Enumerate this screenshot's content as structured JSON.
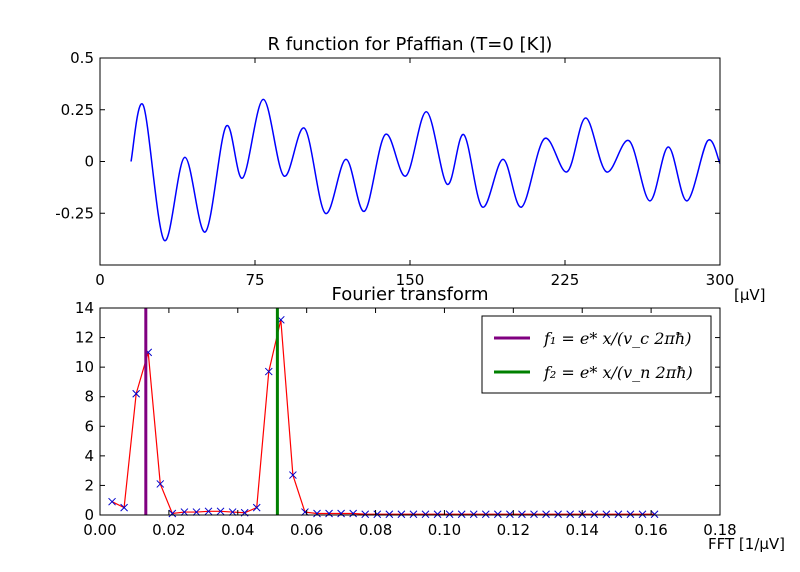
{
  "chart_data": [
    {
      "type": "line",
      "title": "R function for Pfaffian (T=0 [K])",
      "xlabel": "[μV]",
      "ylabel": "",
      "xlim": [
        0,
        300
      ],
      "ylim": [
        -0.5,
        0.5
      ],
      "x_ticks": [
        "0",
        "75",
        "150",
        "225",
        "300"
      ],
      "y_ticks": [
        "0.5",
        "0.25",
        "0",
        "-0.25"
      ],
      "grid": false,
      "series": [
        {
          "color": "#0000ff",
          "x": [
            15,
            21,
            31,
            41,
            51,
            61,
            69,
            79,
            89,
            99,
            109,
            119,
            128,
            138,
            148,
            158,
            168,
            176,
            185,
            195,
            204,
            215,
            226,
            235,
            245,
            256,
            266,
            275,
            284,
            294,
            300
          ],
          "y": [
            0.0,
            0.27,
            -0.38,
            0.02,
            -0.34,
            0.17,
            -0.08,
            0.3,
            -0.07,
            0.16,
            -0.25,
            0.01,
            -0.24,
            0.13,
            -0.07,
            0.24,
            -0.11,
            0.13,
            -0.22,
            0.01,
            -0.22,
            0.11,
            -0.05,
            0.21,
            -0.05,
            0.1,
            -0.19,
            0.07,
            -0.19,
            0.1,
            -0.01
          ]
        }
      ]
    },
    {
      "type": "line",
      "title": "Fourier transform",
      "xlabel": "FFT [1/μV]",
      "ylabel": "",
      "xlim": [
        0.0,
        0.18
      ],
      "ylim": [
        0,
        14
      ],
      "x_ticks": [
        "0.00",
        "0.02",
        "0.04",
        "0.06",
        "0.08",
        "0.10",
        "0.12",
        "0.14",
        "0.16",
        "0.18"
      ],
      "y_ticks": [
        "14",
        "12",
        "10",
        "8",
        "6",
        "4",
        "2",
        "0"
      ],
      "grid": false,
      "series": [
        {
          "color": "#ff0000",
          "marker_color": "#0000cc",
          "marker": "x",
          "x": [
            0.0035,
            0.007,
            0.0105,
            0.014,
            0.0175,
            0.021,
            0.0245,
            0.028,
            0.0315,
            0.035,
            0.0385,
            0.042,
            0.0455,
            0.049,
            0.0525,
            0.056,
            0.0595,
            0.063,
            0.0665,
            0.07,
            0.0735,
            0.077,
            0.0805,
            0.084,
            0.0875,
            0.091,
            0.0945,
            0.098,
            0.1015,
            0.105,
            0.1085,
            0.112,
            0.1155,
            0.119,
            0.1225,
            0.126,
            0.1295,
            0.133,
            0.1365,
            0.14,
            0.1435,
            0.147,
            0.1505,
            0.154,
            0.1575,
            0.161
          ],
          "y": [
            0.9,
            0.5,
            8.2,
            11.0,
            2.1,
            0.1,
            0.2,
            0.2,
            0.25,
            0.25,
            0.2,
            0.15,
            0.5,
            9.7,
            13.2,
            2.7,
            0.2,
            0.1,
            0.1,
            0.1,
            0.1,
            0.05,
            0.05,
            0.05,
            0.05,
            0.05,
            0.05,
            0.05,
            0.05,
            0.05,
            0.05,
            0.05,
            0.05,
            0.05,
            0.05,
            0.05,
            0.05,
            0.05,
            0.05,
            0.05,
            0.05,
            0.05,
            0.05,
            0.05,
            0.05,
            0.05
          ]
        }
      ],
      "vlines": [
        {
          "x": 0.0133,
          "color": "#800080"
        },
        {
          "x": 0.0515,
          "color": "#008000"
        }
      ],
      "legend": {
        "placement": "top-right",
        "entries": [
          {
            "label": "f₁ = e* x/(v_c 2πħ)",
            "color": "#800080"
          },
          {
            "label": "f₂ = e* x/(v_n 2πħ)",
            "color": "#008000"
          }
        ]
      }
    }
  ]
}
